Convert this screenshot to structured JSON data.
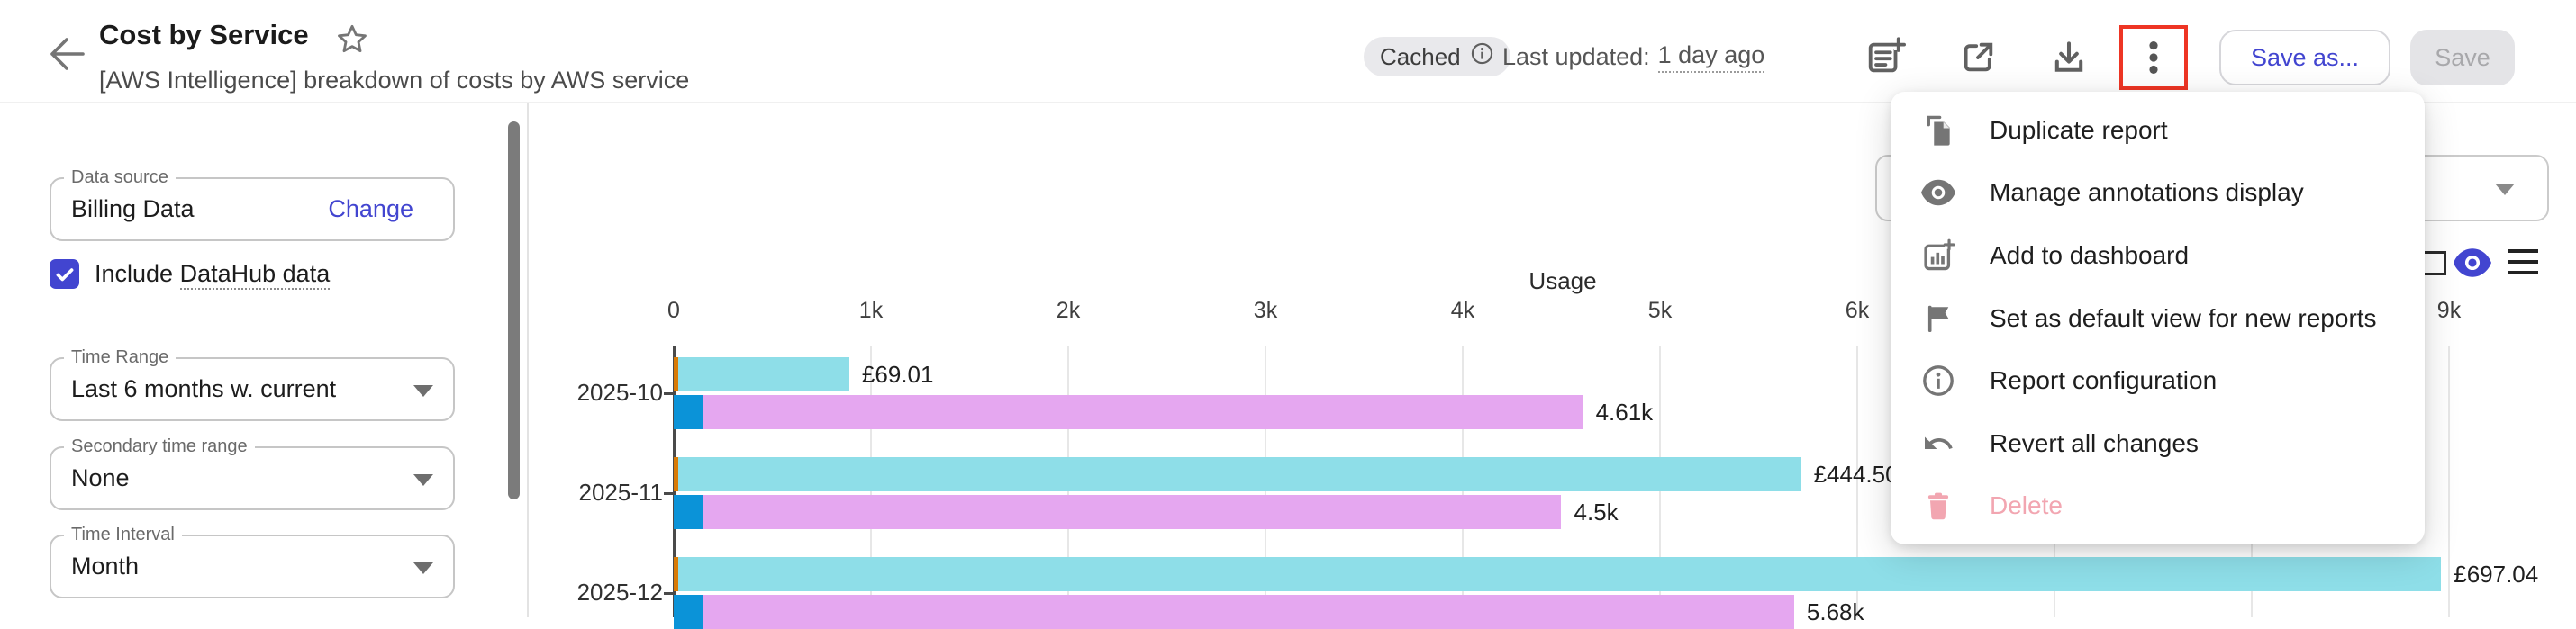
{
  "colors": {
    "accent": "#4245d0",
    "highlight_red": "#ee3524",
    "cost_bar": "#8edee8",
    "cost_accent_bar": "#d97b06",
    "usage_bar": "#e5a7f0",
    "usage_accent_bar": "#0b93d8",
    "delete_disabled": "#f2a6b1"
  },
  "header": {
    "title": "Cost by Service",
    "subtitle": "[AWS Intelligence] breakdown of costs by AWS service",
    "cached_badge": "Cached",
    "last_updated_prefix": "Last updated:",
    "last_updated_value": "1 day ago",
    "save_as_label": "Save as...",
    "save_label": "Save"
  },
  "sidebar": {
    "data_source": {
      "label": "Data source",
      "value": "Billing Data",
      "action": "Change"
    },
    "include_datahub": {
      "prefix": "Include",
      "link_text": "DataHub data",
      "checked": true
    },
    "time_range": {
      "label": "Time Range",
      "value": "Last 6 months w. current"
    },
    "secondary_time_range": {
      "label": "Secondary time range",
      "value": "None"
    },
    "time_interval": {
      "label": "Time Interval",
      "value": "Month"
    }
  },
  "menu": {
    "items": [
      {
        "label": "Duplicate report",
        "icon": "duplicate-icon",
        "disabled": false
      },
      {
        "label": "Manage annotations display",
        "icon": "eye-icon",
        "disabled": false
      },
      {
        "label": "Add to dashboard",
        "icon": "add-chart-icon",
        "disabled": false
      },
      {
        "label": "Set as default view for new reports",
        "icon": "flag-icon",
        "disabled": false
      },
      {
        "label": "Report configuration",
        "icon": "info-icon",
        "disabled": false
      },
      {
        "label": "Revert all changes",
        "icon": "undo-icon",
        "disabled": false
      },
      {
        "label": "Delete",
        "icon": "trash-icon",
        "disabled": true
      }
    ]
  },
  "chart_data": {
    "type": "bar",
    "orientation": "horizontal",
    "title": "Usage",
    "categories": [
      "2025-10",
      "2025-11",
      "2025-12"
    ],
    "x_axis": {
      "label": "Usage",
      "min": 0,
      "max": 9000,
      "ticks": [
        "0",
        "1k",
        "2k",
        "3k",
        "4k",
        "5k",
        "6k",
        "7k",
        "8k",
        "9k"
      ]
    },
    "grid": true,
    "bars": [
      {
        "name": "cost",
        "labels": [
          "£69.01",
          "£444.50",
          "£697.04"
        ],
        "segments": [
          {
            "name": "cost-accent",
            "color": "#d97b06",
            "values": [
              25,
              25,
              25
            ]
          },
          {
            "name": "cost-main",
            "color": "#8edee8",
            "values": [
              865,
              5690,
              8935
            ]
          }
        ]
      },
      {
        "name": "usage",
        "labels": [
          "4.61k",
          "4.5k",
          "5.68k"
        ],
        "segments": [
          {
            "name": "usage-accent",
            "color": "#0b93d8",
            "values": [
              150,
              145,
              145
            ]
          },
          {
            "name": "usage-main",
            "color": "#e5a7f0",
            "values": [
              4460,
              4355,
              5535
            ]
          }
        ]
      }
    ]
  }
}
